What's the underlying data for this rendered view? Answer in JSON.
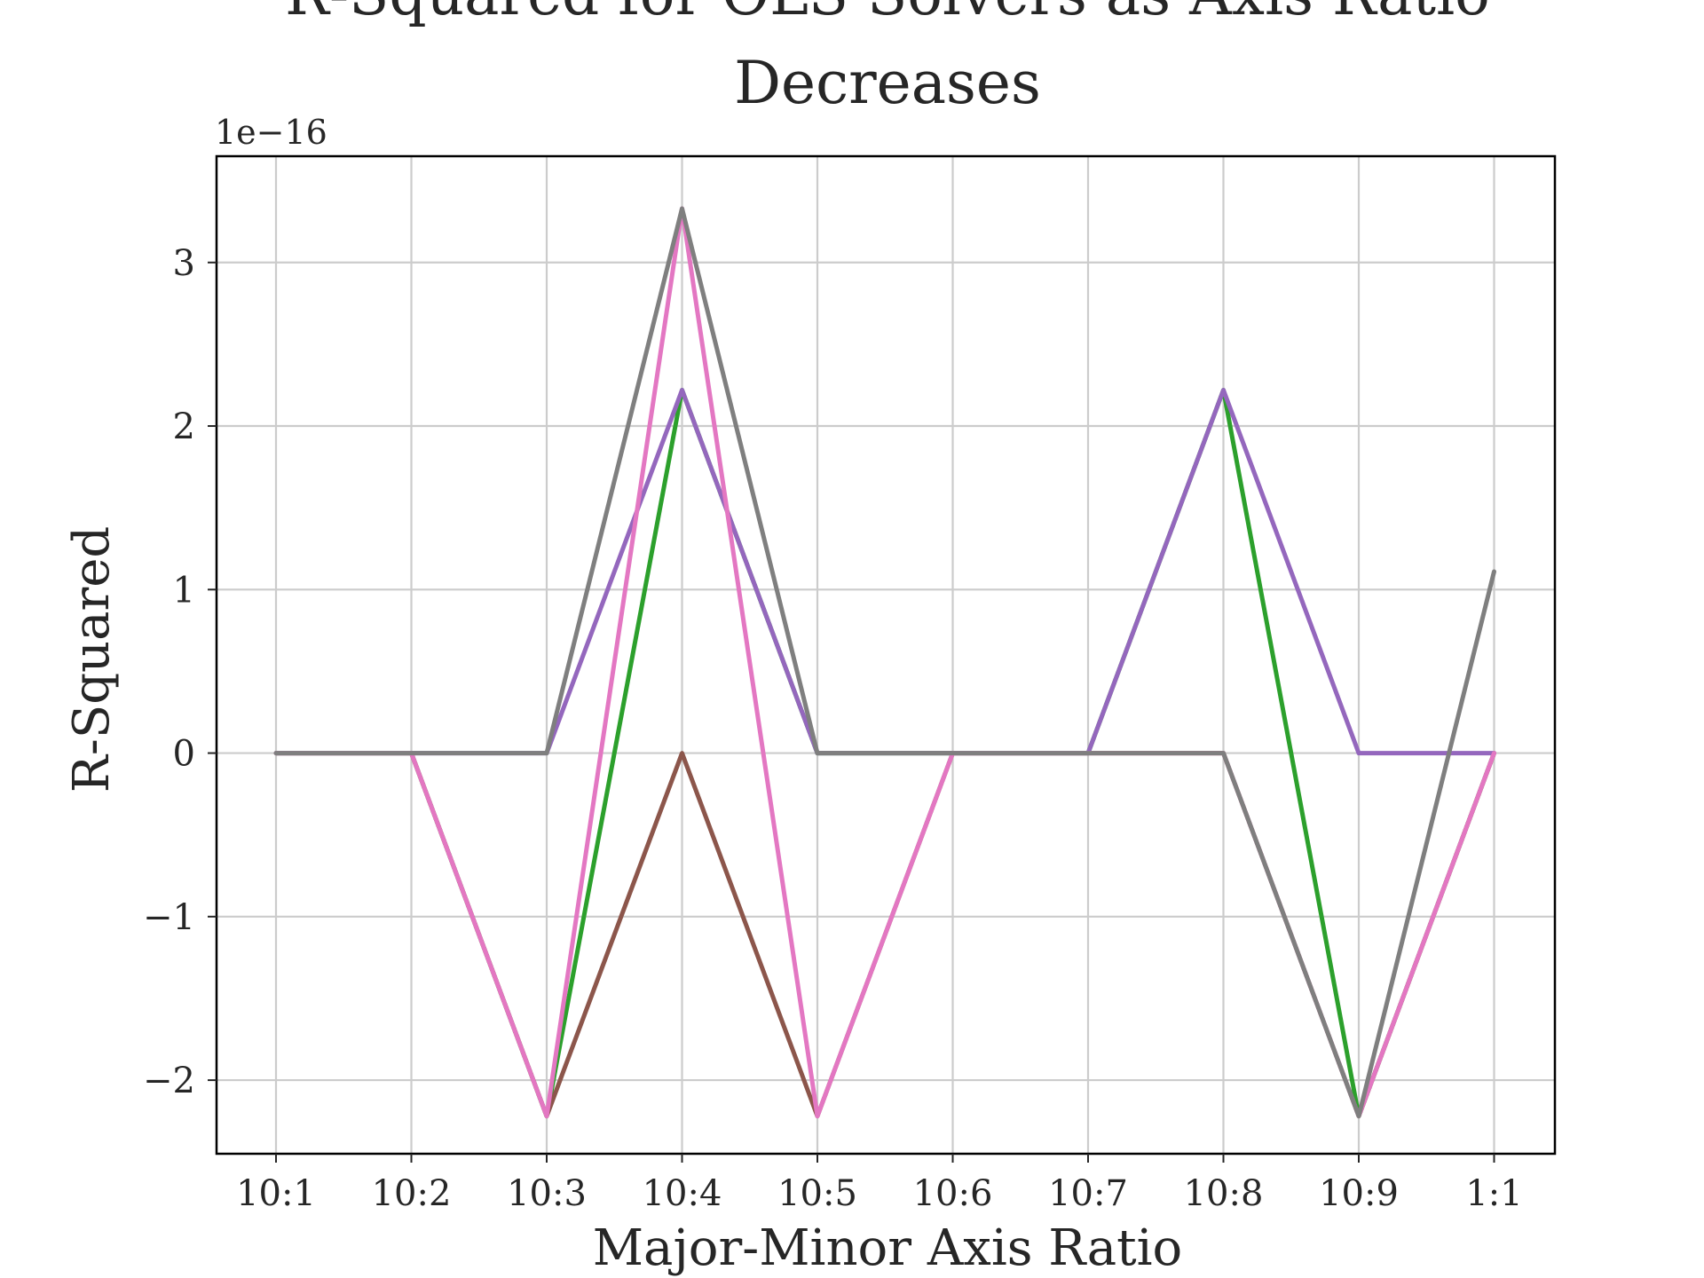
{
  "chart_data": {
    "type": "line",
    "title": "R-Squared for OLS Solvers as Axis Ratio Decreases",
    "title_lines": [
      "R-Squared for OLS Solvers as Axis Ratio",
      "Decreases"
    ],
    "xlabel": "Major-Minor Axis Ratio",
    "ylabel": "R-Squared",
    "y_offset_label": "1e−16",
    "y_scale": 1e-16,
    "categories": [
      "10:1",
      "10:2",
      "10:3",
      "10:4",
      "10:5",
      "10:6",
      "10:7",
      "10:8",
      "10:9",
      "1:1"
    ],
    "yticks": [
      -2,
      -1,
      0,
      1,
      2,
      3
    ],
    "ytick_labels": [
      "−2",
      "−1",
      "0",
      "1",
      "2",
      "3"
    ],
    "ylim": [
      -2.45,
      3.65
    ],
    "grid": true,
    "legend": false,
    "series": [
      {
        "color": "#2ca02c",
        "values": [
          0,
          0,
          -2.22,
          2.22,
          0,
          0,
          0,
          2.22,
          -2.22,
          0
        ]
      },
      {
        "color": "#8c564b",
        "values": [
          0,
          0,
          -2.22,
          0,
          -2.22,
          0,
          0,
          0,
          -2.22,
          0
        ]
      },
      {
        "color": "#9467bd",
        "values": [
          0,
          0,
          0,
          2.22,
          0,
          0,
          0,
          2.22,
          0,
          0
        ]
      },
      {
        "color": "#e377c2",
        "values": [
          0,
          0,
          -2.22,
          3.33,
          -2.22,
          0,
          0,
          0,
          -2.22,
          0
        ]
      },
      {
        "color": "#7f7f7f",
        "values": [
          0,
          0,
          0,
          3.33,
          0,
          0,
          0,
          0,
          -2.22,
          1.11
        ]
      }
    ]
  }
}
